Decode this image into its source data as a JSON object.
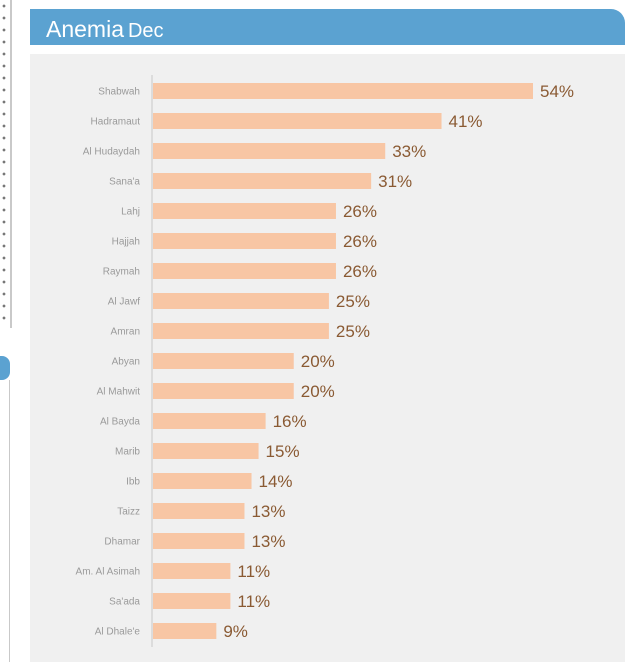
{
  "header": {
    "title": "Anemia",
    "subtitle": "Dec"
  },
  "colors": {
    "header_bg": "#5ba2d1",
    "bar": "#f8c6a4",
    "value_text": "#8a5a33",
    "panel_bg": "#f0f0f0"
  },
  "chart_data": {
    "type": "bar",
    "orientation": "horizontal",
    "categories": [
      "Shabwah",
      "Hadramaut",
      "Al Hudaydah",
      "Sana'a",
      "Lahj",
      "Hajjah",
      "Raymah",
      "Al Jawf",
      "Amran",
      "Abyan",
      "Al Mahwit",
      "Al Bayda",
      "Marib",
      "Ibb",
      "Taizz",
      "Dhamar",
      "Am. Al Asimah",
      "Sa'ada",
      "Al Dhale'e"
    ],
    "values": [
      54,
      41,
      33,
      31,
      26,
      26,
      26,
      25,
      25,
      20,
      20,
      16,
      15,
      14,
      13,
      13,
      11,
      11,
      9
    ],
    "value_labels": [
      "54%",
      "41%",
      "33%",
      "31%",
      "26%",
      "26%",
      "26%",
      "25%",
      "25%",
      "20%",
      "20%",
      "16%",
      "15%",
      "14%",
      "13%",
      "13%",
      "11%",
      "11%",
      "9%"
    ],
    "xlim": [
      0,
      58
    ],
    "grid": false,
    "legend": "none"
  }
}
